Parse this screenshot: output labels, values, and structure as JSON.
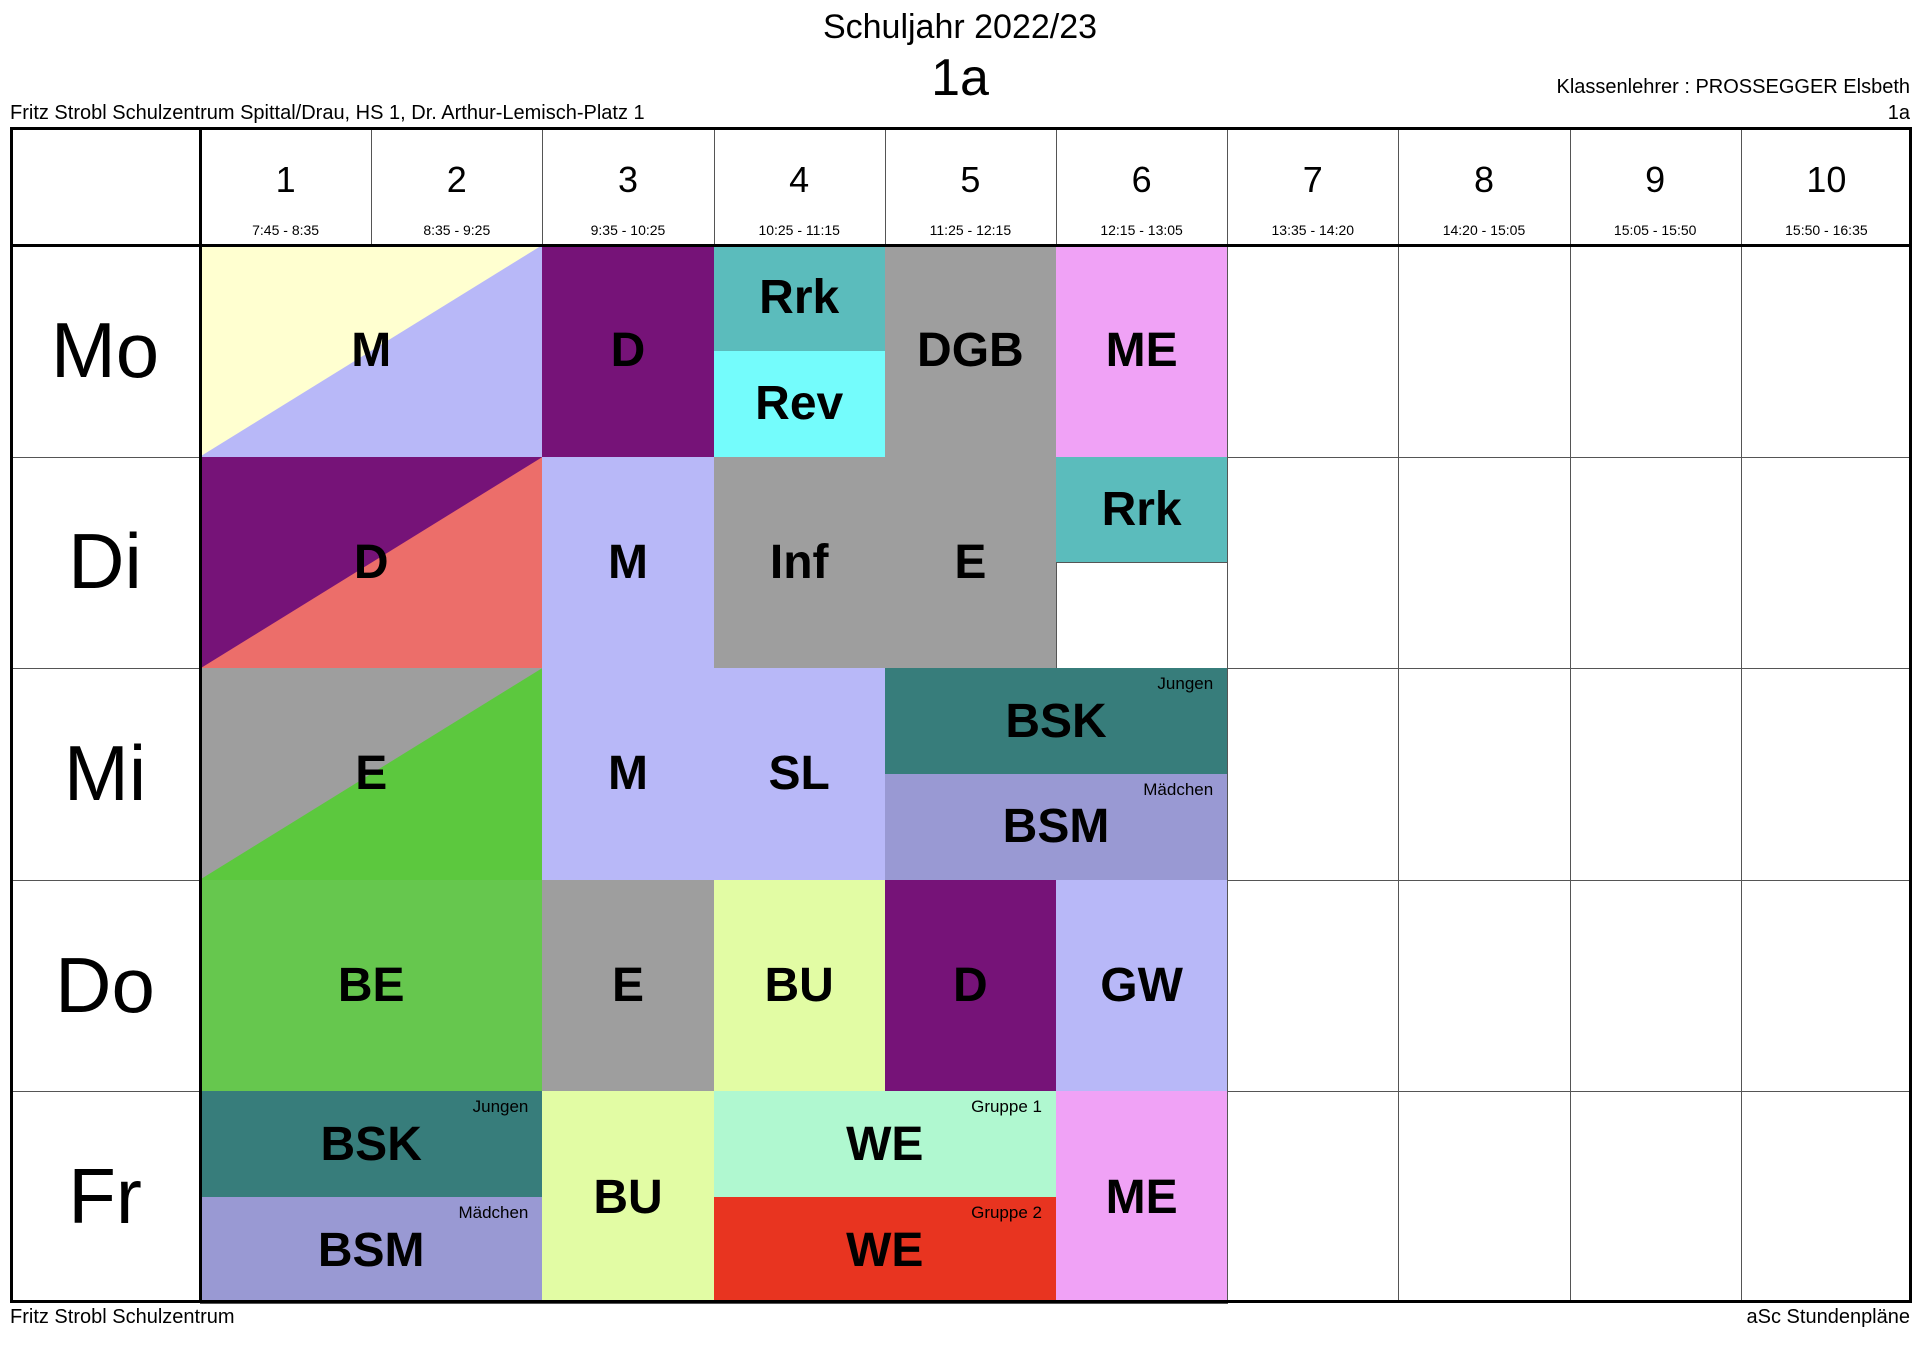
{
  "header": {
    "title": "Schuljahr 2022/23",
    "class_name": "1a",
    "school": "Fritz Strobl Schulzentrum Spittal/Drau, HS 1, Dr. Arthur-Lemisch-Platz 1",
    "teacher": "Klassenlehrer : PROSSEGGER Elsbeth",
    "class_right": "1a"
  },
  "footer": {
    "left": "Fritz Strobl Schulzentrum",
    "right": "aSc Stundenpläne"
  },
  "periods": [
    {
      "num": "1",
      "time": "7:45 - 8:35"
    },
    {
      "num": "2",
      "time": "8:35 - 9:25"
    },
    {
      "num": "3",
      "time": "9:35 - 10:25"
    },
    {
      "num": "4",
      "time": "10:25 - 11:15"
    },
    {
      "num": "5",
      "time": "11:25 - 12:15"
    },
    {
      "num": "6",
      "time": "12:15 - 13:05"
    },
    {
      "num": "7",
      "time": "13:35 - 14:20"
    },
    {
      "num": "8",
      "time": "14:20 - 15:05"
    },
    {
      "num": "9",
      "time": "15:05 - 15:50"
    },
    {
      "num": "10",
      "time": "15:50 - 16:35"
    }
  ],
  "days": [
    "Mo",
    "Di",
    "Mi",
    "Do",
    "Fr"
  ],
  "lessons": [
    {
      "day": 0,
      "start": 1,
      "span": 2,
      "half": "full",
      "subject": "M",
      "group": "",
      "color": "#b8b8f8",
      "diag_color": "#ffffd0"
    },
    {
      "day": 0,
      "start": 3,
      "span": 1,
      "half": "full",
      "subject": "D",
      "group": "",
      "color": "#761378"
    },
    {
      "day": 0,
      "start": 4,
      "span": 1,
      "half": "top",
      "subject": "Rrk",
      "group": "",
      "color": "#5bbcbc"
    },
    {
      "day": 0,
      "start": 4,
      "span": 1,
      "half": "bottom",
      "subject": "Rev",
      "group": "",
      "color": "#74fcfc"
    },
    {
      "day": 0,
      "start": 5,
      "span": 1,
      "half": "full",
      "subject": "DGB",
      "group": "",
      "color": "#9e9e9e"
    },
    {
      "day": 0,
      "start": 6,
      "span": 1,
      "half": "full",
      "subject": "ME",
      "group": "",
      "color": "#f0a2f6"
    },
    {
      "day": 1,
      "start": 1,
      "span": 2,
      "half": "full",
      "subject": "D",
      "group": "",
      "color": "#ec6e6a",
      "diag_color": "#761378"
    },
    {
      "day": 1,
      "start": 3,
      "span": 1,
      "half": "full",
      "subject": "M",
      "group": "",
      "color": "#b8b8f8"
    },
    {
      "day": 1,
      "start": 4,
      "span": 1,
      "half": "full",
      "subject": "Inf",
      "group": "",
      "color": "#9e9e9e"
    },
    {
      "day": 1,
      "start": 5,
      "span": 1,
      "half": "full",
      "subject": "E",
      "group": "",
      "color": "#9e9e9e"
    },
    {
      "day": 1,
      "start": 6,
      "span": 1,
      "half": "top",
      "subject": "Rrk",
      "group": "",
      "color": "#5bbcbc"
    },
    {
      "day": 2,
      "start": 1,
      "span": 2,
      "half": "full",
      "subject": "E",
      "group": "",
      "color": "#5cc83e",
      "diag_color": "#9e9e9e"
    },
    {
      "day": 2,
      "start": 3,
      "span": 1,
      "half": "full",
      "subject": "M",
      "group": "",
      "color": "#b8b8f8"
    },
    {
      "day": 2,
      "start": 4,
      "span": 1,
      "half": "full",
      "subject": "SL",
      "group": "",
      "color": "#b8b8f8"
    },
    {
      "day": 2,
      "start": 5,
      "span": 2,
      "half": "top",
      "subject": "BSK",
      "group": "Jungen",
      "color": "#377d7b"
    },
    {
      "day": 2,
      "start": 5,
      "span": 2,
      "half": "bottom",
      "subject": "BSM",
      "group": "Mädchen",
      "color": "#9999d3"
    },
    {
      "day": 3,
      "start": 1,
      "span": 2,
      "half": "full",
      "subject": "BE",
      "group": "",
      "color": "#66c74e"
    },
    {
      "day": 3,
      "start": 3,
      "span": 1,
      "half": "full",
      "subject": "E",
      "group": "",
      "color": "#9e9e9e"
    },
    {
      "day": 3,
      "start": 4,
      "span": 1,
      "half": "full",
      "subject": "BU",
      "group": "",
      "color": "#e2fca4"
    },
    {
      "day": 3,
      "start": 5,
      "span": 1,
      "half": "full",
      "subject": "D",
      "group": "",
      "color": "#761378"
    },
    {
      "day": 3,
      "start": 6,
      "span": 1,
      "half": "full",
      "subject": "GW",
      "group": "",
      "color": "#b8b8f8"
    },
    {
      "day": 4,
      "start": 1,
      "span": 2,
      "half": "top",
      "subject": "BSK",
      "group": "Jungen",
      "color": "#377d7b"
    },
    {
      "day": 4,
      "start": 1,
      "span": 2,
      "half": "bottom",
      "subject": "BSM",
      "group": "Mädchen",
      "color": "#9999d3"
    },
    {
      "day": 4,
      "start": 3,
      "span": 1,
      "half": "full",
      "subject": "BU",
      "group": "",
      "color": "#e2fca4"
    },
    {
      "day": 4,
      "start": 4,
      "span": 2,
      "half": "top",
      "subject": "WE",
      "group": "Gruppe 1",
      "color": "#b0f8d0"
    },
    {
      "day": 4,
      "start": 4,
      "span": 2,
      "half": "bottom",
      "subject": "WE",
      "group": "Gruppe 2",
      "color": "#e83420"
    },
    {
      "day": 4,
      "start": 6,
      "span": 1,
      "half": "full",
      "subject": "ME",
      "group": "",
      "color": "#f0a2f6"
    }
  ]
}
